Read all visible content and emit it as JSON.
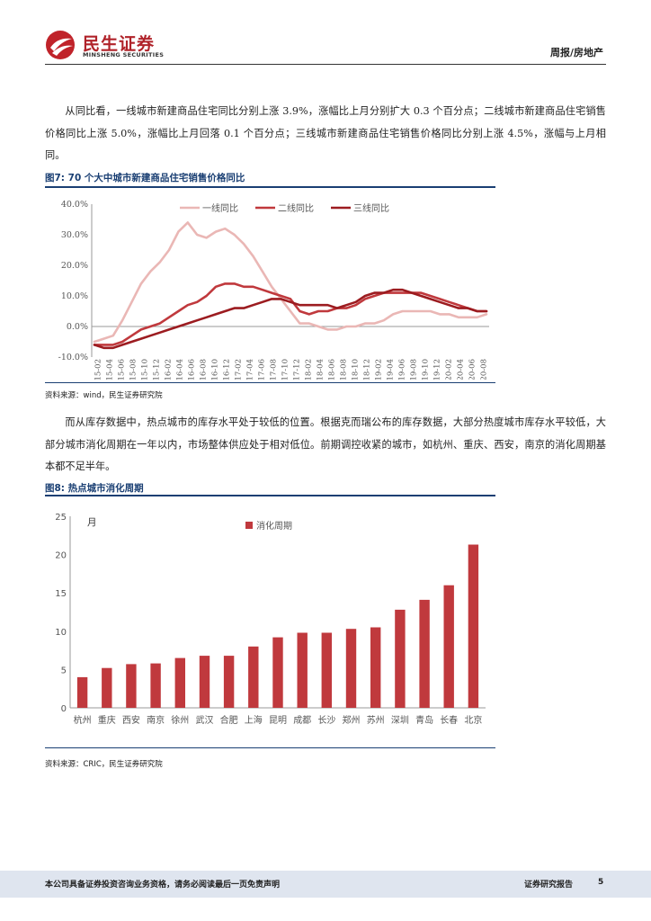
{
  "header": {
    "logo_cn": "民生证券",
    "logo_en": "MINSHENG SECURITIES",
    "section": "周报/房地产"
  },
  "paragraphs": {
    "p1": "从同比看，一线城市新建商品住宅同比分别上涨 3.9%，涨幅比上月分别扩大 0.3 个百分点；二线城市新建商品住宅销售价格同比上涨 5.0%，涨幅比上月回落 0.1 个百分点；三线城市新建商品住宅销售价格同比分别上涨 4.5%，涨幅与上月相同。",
    "p2": "而从库存数据中，热点城市的库存水平处于较低的位置。根据克而瑞公布的库存数据，大部分热度城市库存水平较低，大部分城市消化周期在一年以内，市场整体供应处于相对低位。前期调控收紧的城市，如杭州、重庆、西安，南京的消化周期基本都不足半年。"
  },
  "figure1": {
    "title": "图7: 70 个大中城市新建商品住宅销售价格同比",
    "source": "资料来源：wind，民生证券研究院"
  },
  "figure2": {
    "title": "图8: 热点城市消化周期",
    "source": "资料来源：CRIC，民生证券研究院"
  },
  "chart_data": [
    {
      "type": "line",
      "title": "70 个大中城市新建商品住宅销售价格同比",
      "ylabel": "",
      "ylim": [
        -10,
        40
      ],
      "yticks": [
        "40.0%",
        "30.0%",
        "20.0%",
        "10.0%",
        "0.0%",
        "-10.0%"
      ],
      "ytick_values": [
        40,
        30,
        20,
        10,
        0,
        -10
      ],
      "x_ticks": [
        "2015-02",
        "2015-04",
        "2015-06",
        "2015-08",
        "2015-10",
        "2015-12",
        "2016-02",
        "2016-04",
        "2016-06",
        "2016-08",
        "2016-10",
        "2016-12",
        "2017-02",
        "2017-04",
        "2017-06",
        "2017-08",
        "2017-10",
        "2017-12",
        "2018-02",
        "2018-04",
        "2018-06",
        "2018-08",
        "2018-10",
        "2018-12",
        "2019-02",
        "2019-04",
        "2019-06",
        "2019-08",
        "2019-10",
        "2019-12",
        "2020-02",
        "2020-04",
        "2020-06",
        "2020-08"
      ],
      "series": [
        {
          "name": "一线同比",
          "color": "#eab7b5",
          "values": [
            -5,
            -4,
            -3,
            2,
            8,
            14,
            18,
            21,
            25,
            31,
            34,
            30,
            29,
            31,
            32,
            30,
            27,
            23,
            18,
            13,
            9,
            5,
            1,
            1,
            0,
            -1,
            -1,
            0,
            0,
            1,
            1,
            2,
            4,
            5,
            5,
            5,
            5,
            4,
            4,
            3,
            3,
            3,
            4
          ]
        },
        {
          "name": "二线同比",
          "color": "#c0393d",
          "values": [
            -6,
            -6,
            -6,
            -5,
            -3,
            -1,
            0,
            1,
            3,
            5,
            7,
            8,
            10,
            13,
            14,
            14,
            13,
            13,
            12,
            11,
            10,
            9,
            5,
            4,
            5,
            5,
            6,
            6,
            7,
            9,
            10,
            11,
            11,
            11,
            11,
            11,
            10,
            9,
            8,
            7,
            6,
            5,
            5
          ]
        },
        {
          "name": "三线同比",
          "color": "#9c1c20",
          "values": [
            -6,
            -7,
            -7,
            -6,
            -5,
            -4,
            -3,
            -2,
            -1,
            0,
            1,
            2,
            3,
            4,
            5,
            6,
            6,
            7,
            8,
            9,
            9,
            8,
            7,
            7,
            7,
            7,
            6,
            7,
            8,
            10,
            11,
            11,
            12,
            12,
            11,
            10,
            9,
            8,
            7,
            6,
            6,
            5,
            5
          ]
        }
      ]
    },
    {
      "type": "bar",
      "title": "热点城市消化周期",
      "ylabel": "月",
      "ylim": [
        0,
        25
      ],
      "yticks": [
        "25",
        "20",
        "15",
        "10",
        "5",
        "0"
      ],
      "ytick_values": [
        25,
        20,
        15,
        10,
        5,
        0
      ],
      "legend": "消化周期",
      "color": "#c0393d",
      "categories": [
        "杭州",
        "重庆",
        "西安",
        "南京",
        "徐州",
        "武汉",
        "合肥",
        "上海",
        "昆明",
        "成都",
        "长沙",
        "郑州",
        "苏州",
        "深圳",
        "青岛",
        "长春",
        "北京"
      ],
      "values": [
        4.0,
        5.2,
        5.7,
        5.8,
        6.5,
        6.8,
        6.8,
        8.0,
        9.2,
        9.8,
        9.8,
        10.3,
        10.5,
        12.8,
        14.1,
        16.0,
        21.3
      ]
    }
  ],
  "footer": {
    "disclaimer": "本公司具备证券投资咨询业务资格，请务必阅读最后一页免责声明",
    "report_type": "证券研究报告",
    "page": "5"
  }
}
